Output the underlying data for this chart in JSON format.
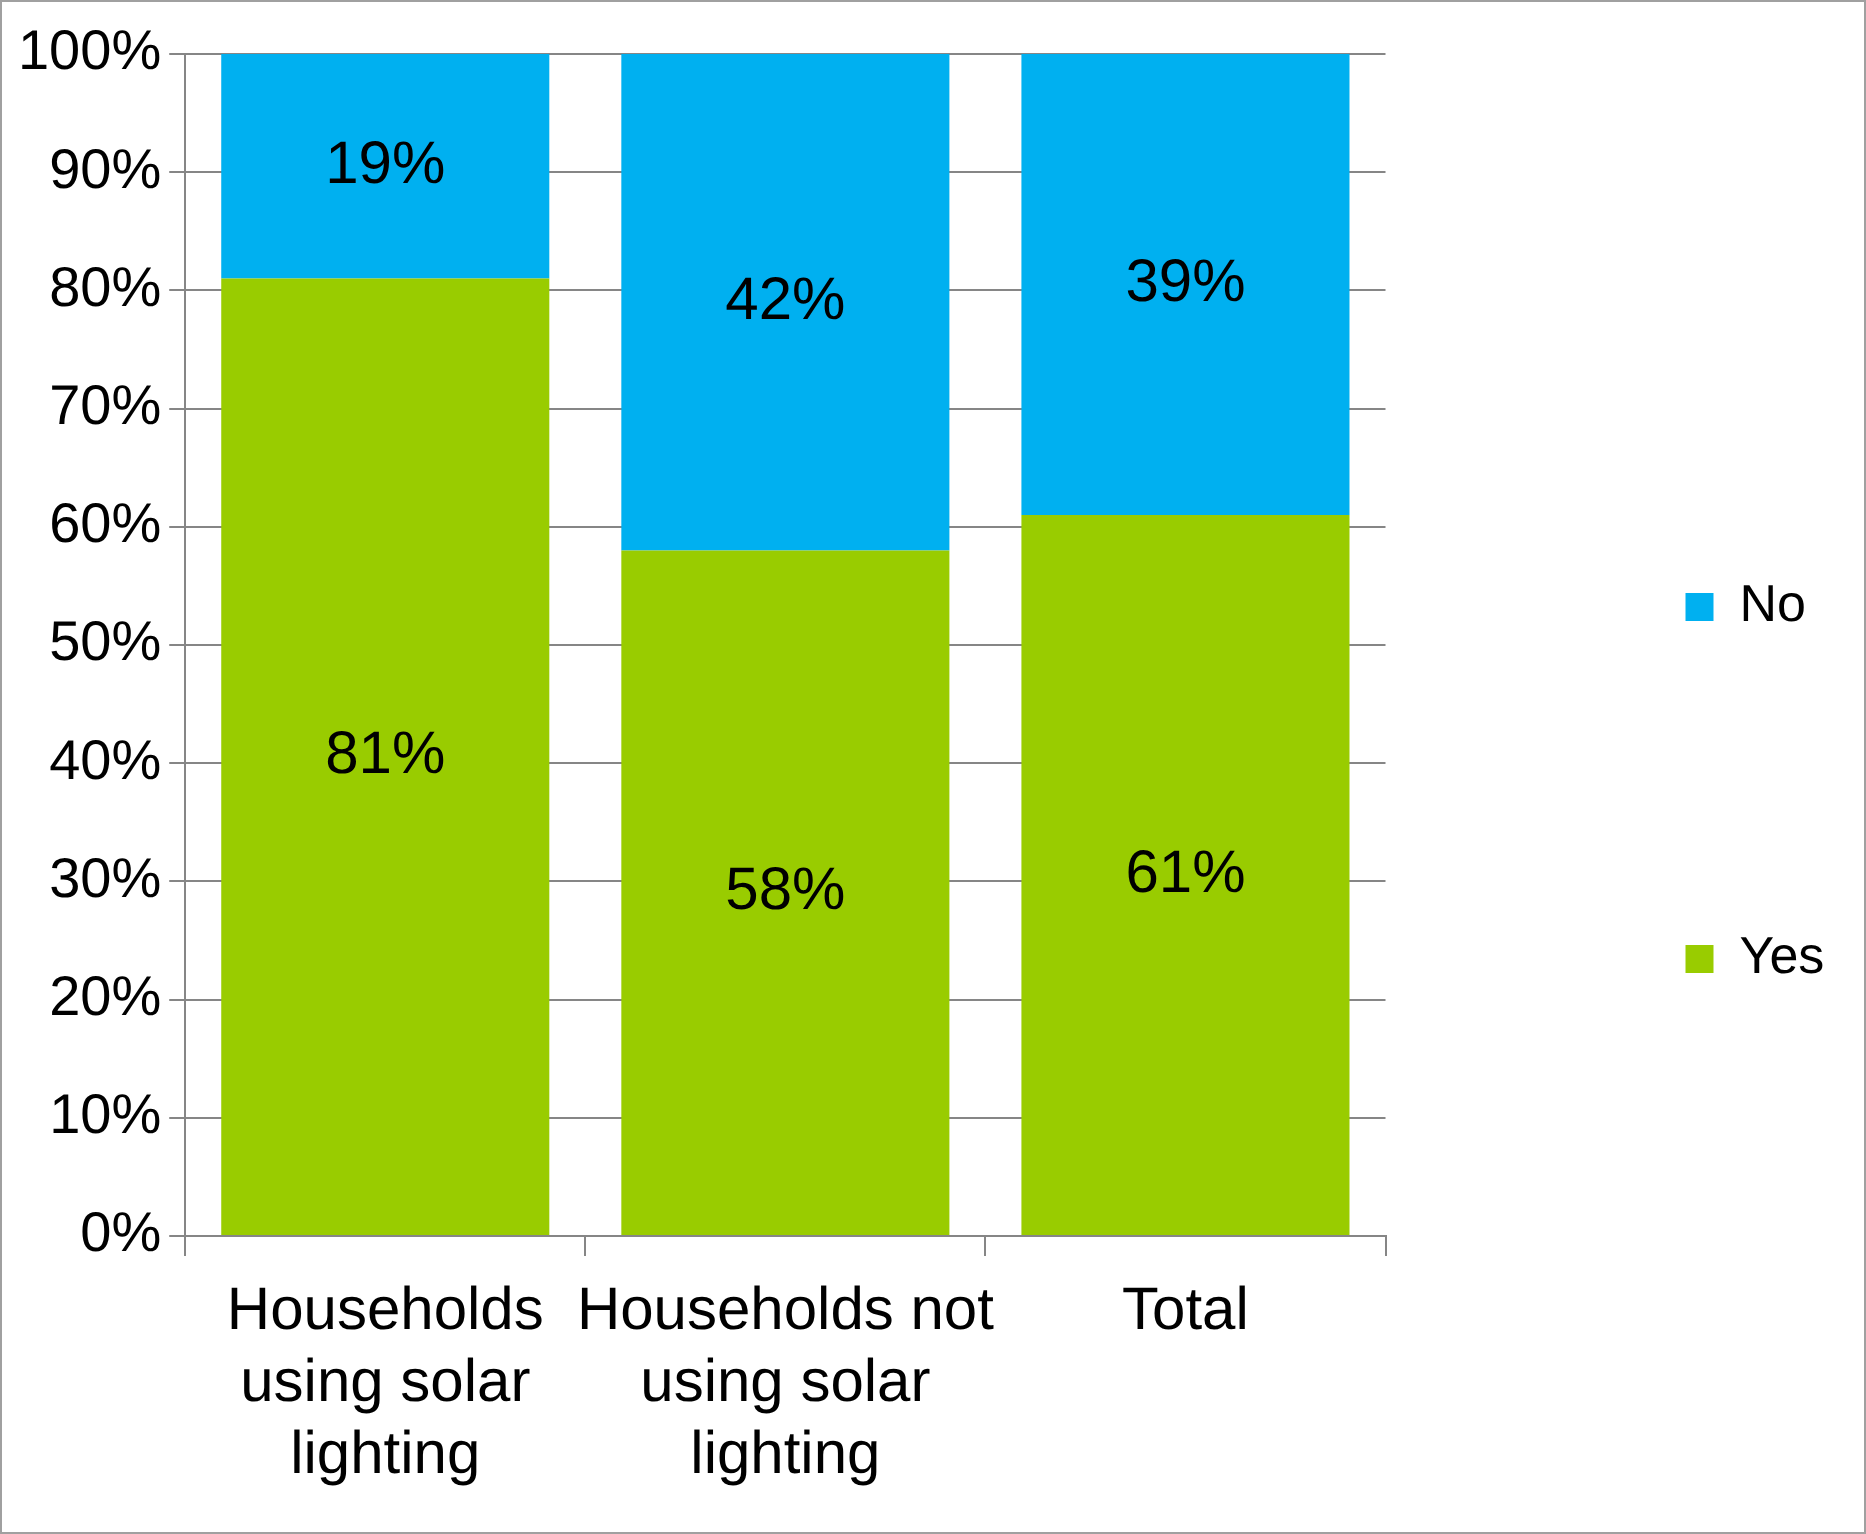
{
  "chart_data": {
    "type": "bar",
    "stacked": true,
    "categories": [
      "Households using solar lighting",
      "Households not using solar lighting",
      "Total"
    ],
    "series": [
      {
        "name": "Yes",
        "color": "#99cc00",
        "values": [
          81,
          58,
          61
        ],
        "value_labels": [
          "81%",
          "58%",
          "61%"
        ]
      },
      {
        "name": "No",
        "color": "#00b0f0",
        "values": [
          19,
          42,
          39
        ],
        "value_labels": [
          "19%",
          "42%",
          "39%"
        ]
      }
    ],
    "ylim": [
      0,
      100
    ],
    "yticks": [
      {
        "value": 0,
        "label": "0%"
      },
      {
        "value": 10,
        "label": "10%"
      },
      {
        "value": 20,
        "label": "20%"
      },
      {
        "value": 30,
        "label": "30%"
      },
      {
        "value": 40,
        "label": "40%"
      },
      {
        "value": 50,
        "label": "50%"
      },
      {
        "value": 60,
        "label": "60%"
      },
      {
        "value": 70,
        "label": "70%"
      },
      {
        "value": 80,
        "label": "80%"
      },
      {
        "value": 90,
        "label": "90%"
      },
      {
        "value": 100,
        "label": "100%"
      }
    ],
    "grid": "y",
    "legend": "right"
  }
}
